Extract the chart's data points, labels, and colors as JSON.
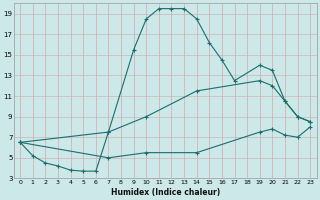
{
  "title": "",
  "xlabel": "Humidex (Indice chaleur)",
  "bg_color": "#cce8e8",
  "grid_major_color": "#e8b8b8",
  "grid_minor_color": "#d8e8e8",
  "line_color": "#1a6e6e",
  "xlim": [
    -0.5,
    23.5
  ],
  "ylim": [
    3,
    20
  ],
  "xticks": [
    0,
    1,
    2,
    3,
    4,
    5,
    6,
    7,
    8,
    9,
    10,
    11,
    12,
    13,
    14,
    15,
    16,
    17,
    18,
    19,
    20,
    21,
    22,
    23
  ],
  "yticks": [
    3,
    5,
    7,
    9,
    11,
    13,
    15,
    17,
    19
  ],
  "line1_x": [
    0,
    1,
    2,
    3,
    4,
    5,
    6,
    7,
    9,
    10,
    11,
    12,
    13,
    14,
    15,
    16,
    17,
    19,
    20,
    21,
    22,
    23
  ],
  "line1_y": [
    6.5,
    5.2,
    4.5,
    4.2,
    3.8,
    3.7,
    3.7,
    7.5,
    15.5,
    18.5,
    19.5,
    19.5,
    19.5,
    18.5,
    16.2,
    14.5,
    12.5,
    14.0,
    13.5,
    10.5,
    9.0,
    8.5
  ],
  "line2_x": [
    0,
    7,
    10,
    14,
    19,
    20,
    21,
    22,
    23
  ],
  "line2_y": [
    6.5,
    7.5,
    9.0,
    11.5,
    12.5,
    12.0,
    10.5,
    9.0,
    8.5
  ],
  "line3_x": [
    0,
    7,
    10,
    14,
    19,
    20,
    21,
    22,
    23
  ],
  "line3_y": [
    6.5,
    5.0,
    5.5,
    5.5,
    7.5,
    7.8,
    7.2,
    7.0,
    8.0
  ]
}
